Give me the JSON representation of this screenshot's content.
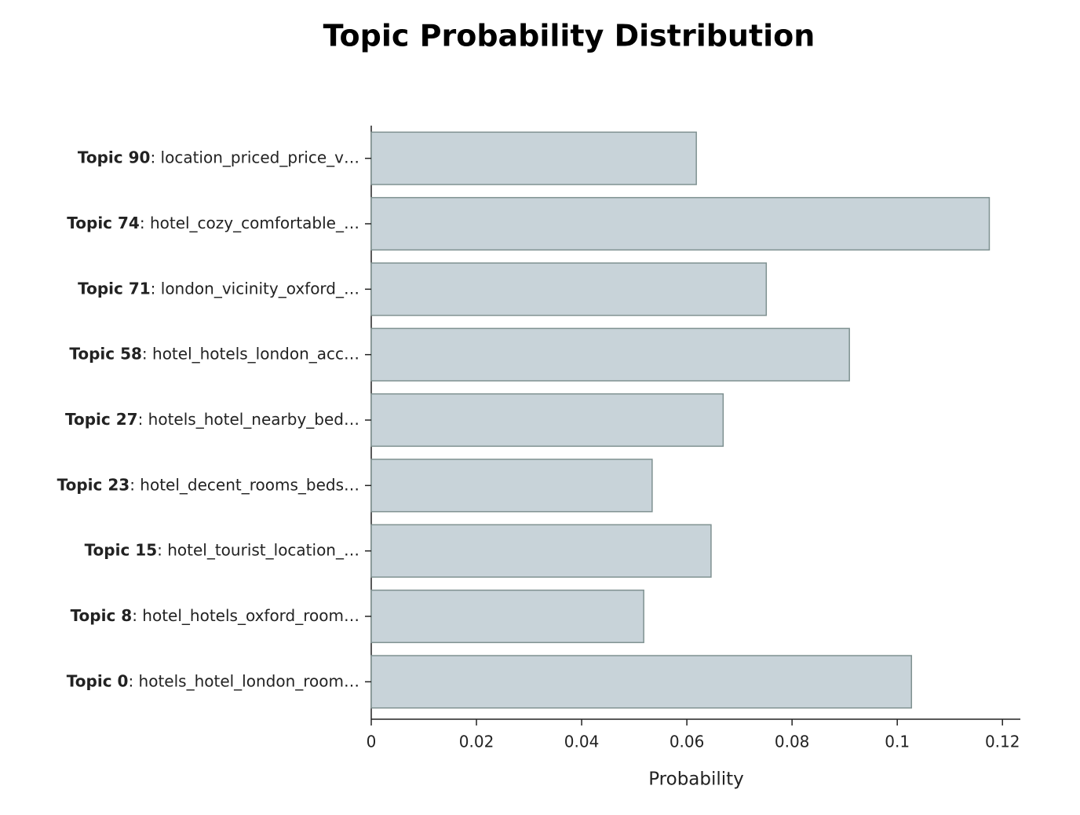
{
  "chart_data": {
    "type": "barh",
    "title": "Topic Probability Distribution",
    "categories": [
      "Topic 90",
      "Topic 74",
      "Topic 71",
      "Topic 58",
      "Topic 27",
      "Topic 23",
      "Topic 15",
      "Topic 8",
      "Topic 0"
    ],
    "category_descriptions": [
      ": location_priced_price_v…",
      ": hotel_cozy_comfortable_…",
      ": london_vicinity_oxford_…",
      ": hotel_hotels_london_acc…",
      ": hotels_hotel_nearby_bed…",
      ": hotel_decent_rooms_beds…",
      ": hotel_tourist_location_…",
      ": hotel_hotels_oxford_room…",
      ": hotels_hotel_london_room…"
    ],
    "values": [
      0.0618,
      0.1175,
      0.0751,
      0.0909,
      0.0669,
      0.0534,
      0.0646,
      0.0518,
      0.1027
    ],
    "color": "#c8d3d9",
    "edge_color": "#7f9191",
    "x_label": "Probability",
    "xlim": [
      0,
      0.1234
    ],
    "xticks": [
      0,
      0.02,
      0.04,
      0.06,
      0.08,
      0.1,
      0.12
    ]
  }
}
